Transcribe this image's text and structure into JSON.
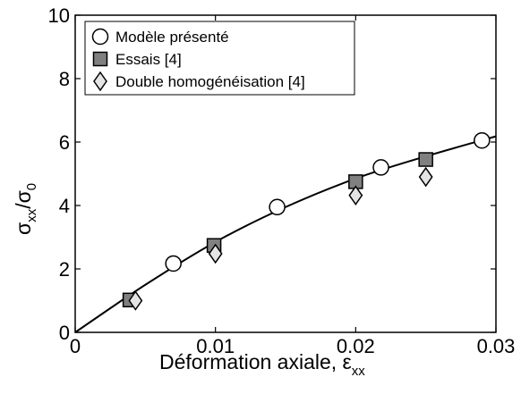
{
  "chart_data": {
    "type": "scatter",
    "title": "",
    "xlabel_main": "Déformation axiale, ε",
    "xlabel_sub": "xx",
    "ylabel_sigma_num": "σ",
    "ylabel_sub_num": "xx",
    "ylabel_slash": "/",
    "ylabel_sigma_den": "σ",
    "ylabel_sub_den": "0",
    "xlim": [
      0,
      0.03
    ],
    "ylim": [
      0,
      10
    ],
    "x_ticks": [
      0,
      0.01,
      0.02,
      0.03
    ],
    "x_tick_labels": [
      "0",
      "0.01",
      "0.02",
      "0.03"
    ],
    "y_ticks": [
      0,
      2,
      4,
      6,
      8,
      10
    ],
    "y_tick_labels": [
      "0",
      "2",
      "4",
      "6",
      "8",
      "10"
    ],
    "grid": false,
    "legend_position": "top-left",
    "series": [
      {
        "name": "Modèle présenté",
        "marker": "circle",
        "color": "#ffffff",
        "points": [
          [
            0.007,
            2.17
          ],
          [
            0.0144,
            3.95
          ],
          [
            0.0218,
            5.2
          ],
          [
            0.029,
            6.05
          ]
        ]
      },
      {
        "name": "Essais [4]",
        "marker": "square",
        "color": "#808080",
        "points": [
          [
            0.0039,
            1.02
          ],
          [
            0.0099,
            2.74
          ],
          [
            0.02,
            4.75
          ],
          [
            0.025,
            5.45
          ]
        ]
      },
      {
        "name": "Double homogénéisation [4]",
        "marker": "diamond",
        "color": "#e4e4e4",
        "points": [
          [
            0.0043,
            1.0
          ],
          [
            0.01,
            2.48
          ],
          [
            0.02,
            4.32
          ],
          [
            0.025,
            4.9
          ]
        ]
      }
    ],
    "curve": {
      "x": [
        0,
        0.005,
        0.01,
        0.015,
        0.02,
        0.025,
        0.03
      ],
      "y": [
        0,
        1.5,
        2.85,
        3.95,
        4.85,
        5.55,
        6.18
      ]
    }
  }
}
